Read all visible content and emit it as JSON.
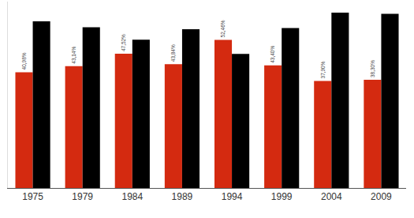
{
  "chart_data": {
    "type": "bar",
    "categories": [
      "1975",
      "1979",
      "1984",
      "1989",
      "1994",
      "1999",
      "2004",
      "2009"
    ],
    "series": [
      {
        "color": "#d42a10",
        "data_labels": true,
        "values": [
          40.98,
          43.14,
          47.52,
          43.84,
          52.46,
          43.4,
          37.9,
          38.3
        ],
        "value_labels": [
          "40,98%",
          "43,14%",
          "47,52%",
          "43,84%",
          "52,46%",
          "43,40%",
          "37,90%",
          "38,30%"
        ]
      },
      {
        "color": "#000000",
        "values": [
          59.0,
          56.9,
          52.5,
          56.2,
          47.5,
          56.6,
          62.1,
          61.7
        ]
      }
    ],
    "ylim": [
      0,
      66
    ],
    "yticks": [],
    "grid": false,
    "tick_labels": "x"
  }
}
